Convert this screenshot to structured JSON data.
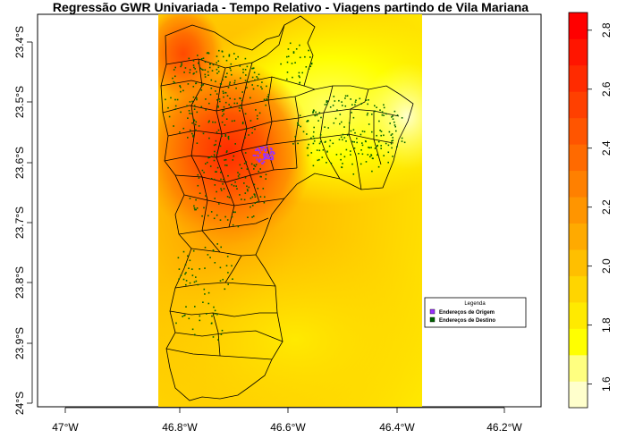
{
  "title": "Regressão GWR Univariada - Tempo Relativo - Viagens partindo de Vila Mariana",
  "axes": {
    "x_ticks": [
      "47°W",
      "46.8°W",
      "46.6°W",
      "46.4°W",
      "46.2°W"
    ],
    "y_ticks": [
      "23.4°S",
      "23.5°S",
      "23.6°S",
      "23.7°S",
      "23.8°S",
      "23.9°S",
      "24°S"
    ]
  },
  "legend": {
    "title": "Legenda",
    "items": [
      {
        "label": "Endereços de Origem",
        "color": "#9b30ff"
      },
      {
        "label": "Endereços de Destino",
        "color": "#006400"
      }
    ]
  },
  "colorbar": {
    "ticks": [
      "1.6",
      "1.8",
      "2.0",
      "2.2",
      "2.4",
      "2.6",
      "2.8"
    ],
    "range": [
      1.52,
      2.86
    ],
    "colors": [
      "#ffffcc",
      "#ffff80",
      "#ffff00",
      "#ffea00",
      "#ffd500",
      "#ffbf00",
      "#ffaa00",
      "#ff9500",
      "#ff8000",
      "#ff6a00",
      "#ff5500",
      "#ff4000",
      "#ff2b00",
      "#ff1500",
      "#ff0000"
    ]
  }
}
